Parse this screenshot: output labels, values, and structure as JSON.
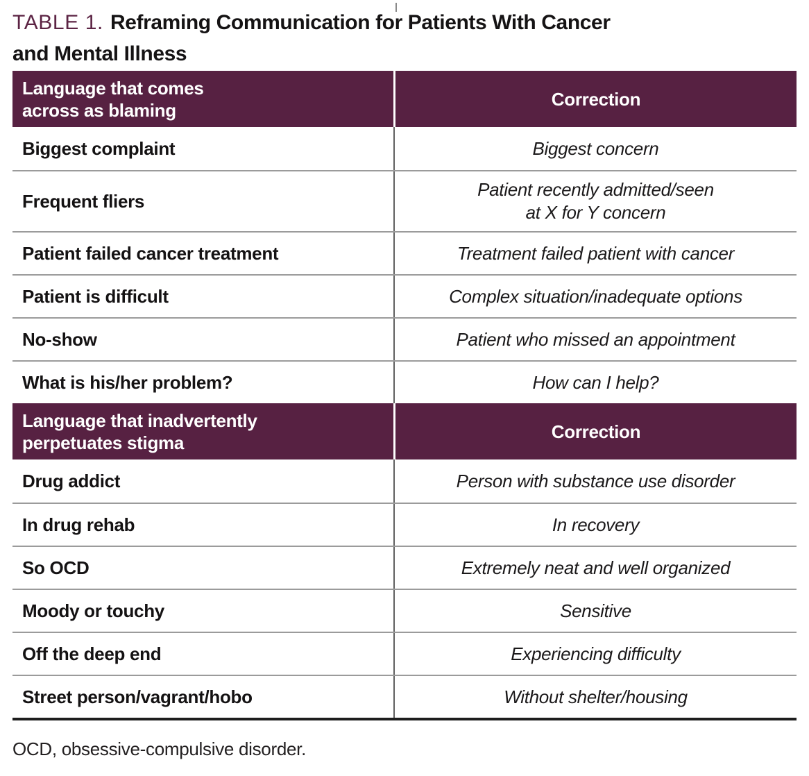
{
  "title": {
    "label": "TABLE 1.",
    "line1": "Reframing Communication for Patients With Cancer",
    "line2": "and Mental Illness"
  },
  "table": {
    "sections": [
      {
        "header": {
          "label": "Language that comes\nacross as blaming",
          "correction": "Correction"
        },
        "rows": [
          {
            "term": "Biggest complaint",
            "correction": "Biggest concern"
          },
          {
            "term": "Frequent fliers",
            "correction": "Patient recently admitted/seen\nat X for Y concern"
          },
          {
            "term": "Patient failed cancer treatment",
            "correction": "Treatment failed patient with cancer"
          },
          {
            "term": "Patient is difficult",
            "correction": "Complex situation/inadequate options"
          },
          {
            "term": "No-show",
            "correction": "Patient who missed an appointment"
          },
          {
            "term": "What is his/her problem?",
            "correction": "How can I help?"
          }
        ]
      },
      {
        "header": {
          "label": "Language that inadvertently\nperpetuates stigma",
          "correction": "Correction"
        },
        "rows": [
          {
            "term": "Drug addict",
            "correction": "Person with substance use disorder"
          },
          {
            "term": "In drug rehab",
            "correction": "In recovery"
          },
          {
            "term": "So OCD",
            "correction": "Extremely neat and well organized"
          },
          {
            "term": "Moody or touchy",
            "correction": "Sensitive"
          },
          {
            "term": "Off the deep end",
            "correction": "Experiencing difficulty"
          },
          {
            "term": "Street person/vagrant/hobo",
            "correction": "Without shelter/housing"
          }
        ]
      }
    ]
  },
  "footnote": "OCD, obsessive-compulsive disorder.",
  "colors": {
    "header_bg": "#572142",
    "title_accent": "#5c2444",
    "separator": "#9b9b9b",
    "divider": "#5f5f5f",
    "text": "#1d1a1b",
    "rule": "#1d1d1d"
  }
}
